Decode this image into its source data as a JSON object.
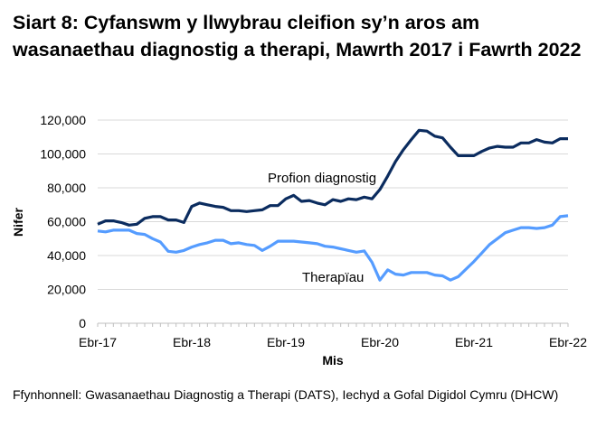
{
  "chart_data": {
    "type": "line",
    "title": "Siart 8: Cyfanswm y llwybrau cleifion sy’n aros am wasanaethau diagnostig a therapi, Mawrth 2017 i Fawrth 2022",
    "xlabel": "Mis",
    "ylabel": "Nifer",
    "ylim": [
      0,
      120000
    ],
    "yticks": [
      "0",
      "20,000",
      "40,000",
      "60,000",
      "80,000",
      "100,000",
      "120,000"
    ],
    "xticks": [
      "Ebr-17",
      "Ebr-18",
      "Ebr-19",
      "Ebr-20",
      "Ebr-21",
      "Ebr-22"
    ],
    "grid": true,
    "series": [
      {
        "name": "Profion diagnostig",
        "color": "#0b2c5f",
        "values": [
          58500,
          60500,
          60500,
          59500,
          58000,
          58500,
          62000,
          63000,
          63000,
          61000,
          61000,
          59500,
          69000,
          71000,
          70000,
          69000,
          68500,
          66500,
          66500,
          66000,
          66500,
          67000,
          69500,
          69500,
          73500,
          75500,
          72000,
          72500,
          71000,
          70000,
          73000,
          72000,
          73500,
          73000,
          74500,
          73500,
          79000,
          87000,
          95500,
          102500,
          108500,
          114000,
          113500,
          110500,
          109500,
          104000,
          99000,
          99000,
          99000,
          101500,
          103500,
          104500,
          104000,
          104000,
          106500,
          106500,
          108500,
          107000,
          106500,
          109000,
          109000
        ]
      },
      {
        "name": "Therapïau",
        "color": "#559cff",
        "values": [
          54500,
          54000,
          55000,
          55000,
          55000,
          53000,
          52500,
          50000,
          48000,
          42500,
          42000,
          43000,
          45000,
          46500,
          47500,
          49000,
          49000,
          47000,
          47500,
          46500,
          46000,
          43000,
          45500,
          48500,
          48500,
          48500,
          48000,
          47500,
          47000,
          45500,
          45000,
          44000,
          43000,
          42000,
          42700,
          36000,
          25500,
          31500,
          29000,
          28500,
          30000,
          30000,
          30000,
          28500,
          28000,
          25500,
          27500,
          32000,
          36500,
          41500,
          46500,
          50000,
          53500,
          55000,
          56500,
          56500,
          56000,
          56500,
          58000,
          63000,
          63500
        ]
      }
    ]
  },
  "source": "Ffynhonnell: Gwasanaethau Diagnostig a Therapi (DATS), Iechyd a Gofal Digidol Cymru (DHCW)"
}
